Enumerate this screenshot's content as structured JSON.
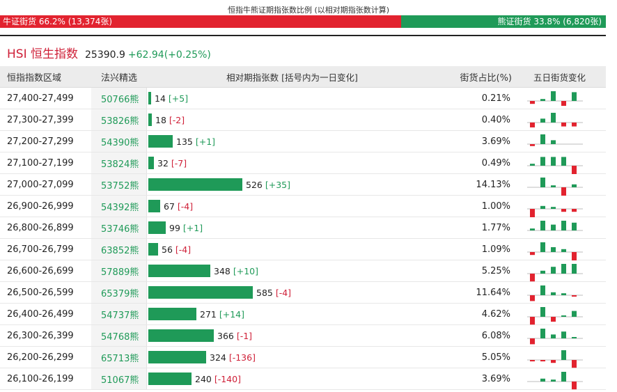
{
  "header": {
    "title": "恒指牛熊证期指张数比例 (以相对期指张数计算)",
    "bull_label": "牛证街货 66.2% (13,374张)",
    "bear_label": "熊证街货 33.8% (6,820张)",
    "bull_fraction": 0.662,
    "bear_fraction": 0.338
  },
  "index": {
    "name": "HSI 恒生指数",
    "value": "25390.9",
    "change": "+62.94(+0.25%)"
  },
  "table": {
    "columns": {
      "range": "恒指指数区域",
      "code": "法兴精选",
      "contracts": "相对期指张数 [括号内为一日变化]",
      "pct": "街货占比(%)",
      "trend": "五日街货变化"
    },
    "rows": [
      {
        "range": "27,400-27,499",
        "code": "50766熊",
        "contracts": 14,
        "contracts_text": "14",
        "change": "[+5]",
        "pct": "0.21%",
        "trend": [
          -0.3,
          0.2,
          1.0,
          -0.5,
          0.9
        ]
      },
      {
        "range": "27,300-27,399",
        "code": "53826熊",
        "contracts": 18,
        "contracts_text": "18",
        "change": "[-2]",
        "pct": "0.40%",
        "trend": [
          -0.5,
          0.4,
          1.0,
          -0.4,
          -0.4
        ]
      },
      {
        "range": "27,200-27,299",
        "code": "54390熊",
        "contracts": 135,
        "contracts_text": "135",
        "change": "[+1]",
        "pct": "3.69%",
        "trend": [
          -0.2,
          1.0,
          0.4,
          0.0,
          0.0
        ]
      },
      {
        "range": "27,100-27,199",
        "code": "53824熊",
        "contracts": 32,
        "contracts_text": "32",
        "change": "[-7]",
        "pct": "0.49%",
        "trend": [
          0.2,
          0.9,
          0.9,
          0.9,
          -1.0
        ]
      },
      {
        "range": "27,000-27,099",
        "code": "53752熊",
        "contracts": 526,
        "contracts_text": "526",
        "change": "[+35]",
        "pct": "14.13%",
        "trend": [
          0.0,
          1.0,
          0.2,
          -1.0,
          0.3
        ]
      },
      {
        "range": "26,900-26,999",
        "code": "54392熊",
        "contracts": 67,
        "contracts_text": "67",
        "change": "[-4]",
        "pct": "1.00%",
        "trend": [
          -1.0,
          0.3,
          0.2,
          -0.3,
          -0.3
        ]
      },
      {
        "range": "26,800-26,899",
        "code": "53746熊",
        "contracts": 99,
        "contracts_text": "99",
        "change": "[+1]",
        "pct": "1.77%",
        "trend": [
          0.2,
          1.0,
          0.6,
          1.0,
          0.8
        ]
      },
      {
        "range": "26,700-26,799",
        "code": "63852熊",
        "contracts": 56,
        "contracts_text": "56",
        "change": "[-4]",
        "pct": "1.09%",
        "trend": [
          -0.3,
          1.0,
          0.5,
          0.3,
          -0.9
        ]
      },
      {
        "range": "26,600-26,699",
        "code": "57889熊",
        "contracts": 348,
        "contracts_text": "348",
        "change": "[+10]",
        "pct": "5.25%",
        "trend": [
          -0.8,
          0.3,
          0.7,
          1.0,
          1.0
        ]
      },
      {
        "range": "26,500-26,599",
        "code": "65379熊",
        "contracts": 585,
        "contracts_text": "585",
        "change": "[-4]",
        "pct": "11.64%",
        "trend": [
          -0.6,
          1.0,
          0.3,
          0.2,
          -0.1
        ]
      },
      {
        "range": "26,400-26,499",
        "code": "54737熊",
        "contracts": 271,
        "contracts_text": "271",
        "change": "[+14]",
        "pct": "4.62%",
        "trend": [
          -0.8,
          1.0,
          -0.5,
          0.1,
          0.6
        ]
      },
      {
        "range": "26,300-26,399",
        "code": "54768熊",
        "contracts": 366,
        "contracts_text": "366",
        "change": "[-1]",
        "pct": "6.08%",
        "trend": [
          -0.6,
          1.0,
          0.4,
          0.7,
          0.1
        ]
      },
      {
        "range": "26,200-26,299",
        "code": "65713熊",
        "contracts": 324,
        "contracts_text": "324",
        "change": "[-136]",
        "pct": "5.05%",
        "trend": [
          -0.1,
          -0.1,
          -0.3,
          1.0,
          -0.8
        ]
      },
      {
        "range": "26,100-26,199",
        "code": "51067熊",
        "contracts": 240,
        "contracts_text": "240",
        "change": "[-140]",
        "pct": "3.69%",
        "trend": [
          0.0,
          0.3,
          0.2,
          1.0,
          -0.8
        ]
      }
    ]
  },
  "colors": {
    "bull": "#e2232f",
    "bear": "#1f9a58",
    "index_name": "#cf2038"
  }
}
